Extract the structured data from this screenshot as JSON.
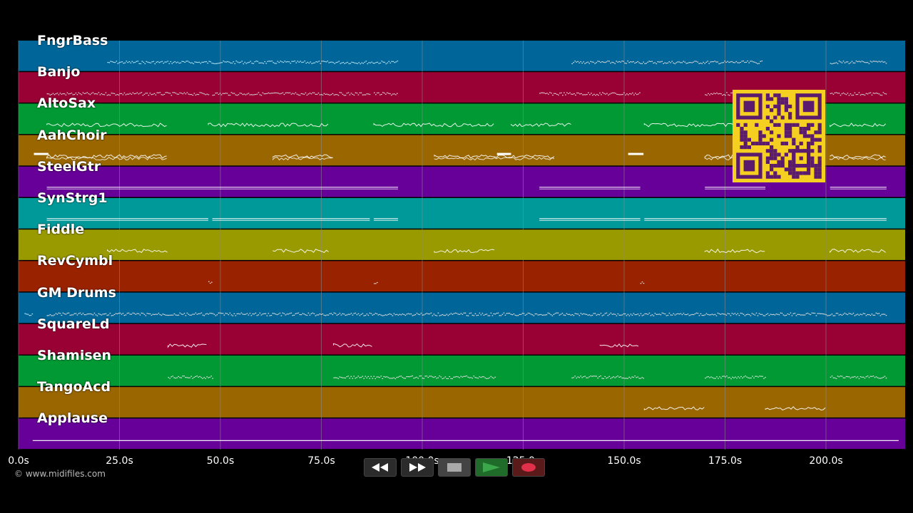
{
  "app": {
    "type": "midi-piano-roll-player",
    "copyright": "© www.midifiles.com"
  },
  "timeline": {
    "unit": "s",
    "min": 0,
    "max": 220,
    "ticks": [
      {
        "value": 0,
        "label": "0.0s"
      },
      {
        "value": 25,
        "label": "25.0s"
      },
      {
        "value": 50,
        "label": "50.0s"
      },
      {
        "value": 75,
        "label": "75.0s"
      },
      {
        "value": 100,
        "label": "100.0s"
      },
      {
        "value": 125,
        "label": "125.0s"
      },
      {
        "value": 150,
        "label": "150.0s"
      },
      {
        "value": 175,
        "label": "175.0s"
      },
      {
        "value": 200,
        "label": "200.0s"
      }
    ]
  },
  "tracks": [
    {
      "name": "FngrBass",
      "color": "#006699",
      "segments": [
        [
          22,
          94
        ],
        [
          137,
          184
        ],
        [
          201,
          215
        ]
      ],
      "style": "dots"
    },
    {
      "name": "Banjo",
      "color": "#990033",
      "segments": [
        [
          7,
          47
        ],
        [
          48,
          87
        ],
        [
          88,
          94
        ],
        [
          129,
          154
        ],
        [
          170,
          185
        ],
        [
          201,
          215
        ]
      ],
      "style": "dots"
    },
    {
      "name": "AltoSax",
      "color": "#009933",
      "segments": [
        [
          7,
          37
        ],
        [
          47,
          77
        ],
        [
          88,
          118
        ],
        [
          122,
          137
        ],
        [
          155,
          185
        ],
        [
          201,
          215
        ]
      ],
      "style": "wave"
    },
    {
      "name": "AahChoir",
      "color": "#996600",
      "segments": [
        [
          7,
          37
        ],
        [
          63,
          78
        ],
        [
          103,
          133
        ],
        [
          170,
          185
        ],
        [
          201,
          215
        ]
      ],
      "style": "wave"
    },
    {
      "name": "SteelGtr",
      "color": "#660099",
      "segments": [
        [
          7,
          94
        ],
        [
          129,
          154
        ],
        [
          170,
          185
        ],
        [
          201,
          215
        ]
      ],
      "style": "line"
    },
    {
      "name": "SynStrg1",
      "color": "#009999",
      "segments": [
        [
          7,
          47
        ],
        [
          48,
          87
        ],
        [
          88,
          94
        ],
        [
          129,
          154
        ],
        [
          155,
          215
        ]
      ],
      "style": "line"
    },
    {
      "name": "Fiddle",
      "color": "#999900",
      "segments": [
        [
          22,
          37
        ],
        [
          63,
          77
        ],
        [
          103,
          118
        ],
        [
          170,
          185
        ],
        [
          201,
          215
        ]
      ],
      "style": "wave"
    },
    {
      "name": "RevCymbl",
      "color": "#992200",
      "segments": [
        [
          47,
          47.8
        ],
        [
          88,
          88.8
        ],
        [
          154,
          154.8
        ]
      ],
      "style": "dots"
    },
    {
      "name": "GM Drums",
      "color": "#006699",
      "segments": [
        [
          1.5,
          3.5
        ],
        [
          7,
          215
        ]
      ],
      "style": "dots"
    },
    {
      "name": "SquareLd",
      "color": "#990033",
      "segments": [
        [
          37,
          47
        ],
        [
          78,
          88
        ],
        [
          144,
          154
        ]
      ],
      "style": "wave"
    },
    {
      "name": "Shamisen",
      "color": "#009933",
      "segments": [
        [
          37,
          48
        ],
        [
          78,
          118
        ],
        [
          137,
          155
        ],
        [
          170,
          185
        ],
        [
          201,
          215
        ]
      ],
      "style": "dots"
    },
    {
      "name": "TangoAcd",
      "color": "#996600",
      "segments": [
        [
          155,
          170
        ],
        [
          185,
          200
        ]
      ],
      "style": "wave"
    },
    {
      "name": "Applause",
      "color": "#660099",
      "segments": [
        [
          3.5,
          218
        ]
      ],
      "style": "line"
    }
  ],
  "transport": {
    "buttons": [
      {
        "name": "rewind-button",
        "icon": "rewind-icon"
      },
      {
        "name": "fast-forward-button",
        "icon": "fast-forward-icon"
      },
      {
        "name": "stop-button",
        "icon": "stop-icon"
      },
      {
        "name": "play-button",
        "icon": "play-icon"
      },
      {
        "name": "record-button",
        "icon": "record-icon"
      }
    ]
  },
  "colors": {
    "background": "#000000",
    "grid": "#8a8a8a",
    "qr_fg": "#5a1a6e",
    "qr_bg": "#f5d020",
    "play": "#3aa84a",
    "record": "#e0304a"
  }
}
